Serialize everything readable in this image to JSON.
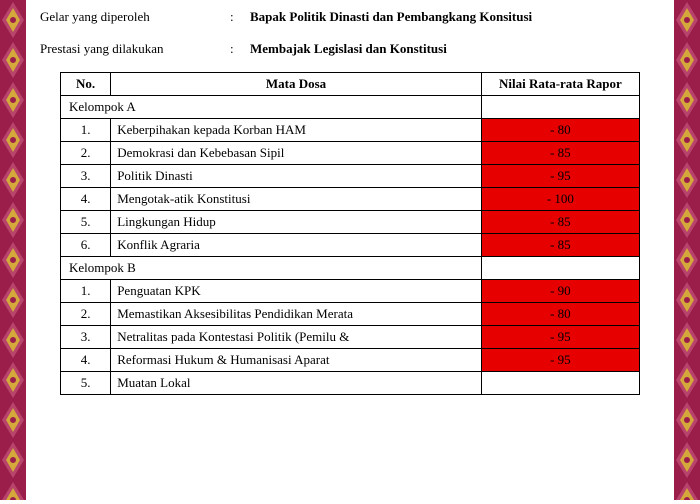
{
  "info_rows": [
    {
      "label": "Gelar yang diperoleh",
      "value": "Bapak Politik Dinasti dan Pembangkang Konsitusi"
    },
    {
      "label": "Prestasi yang dilakukan",
      "value": "Membajak Legislasi dan Konstitusi"
    }
  ],
  "headers": {
    "no": "No.",
    "subject": "Mata Dosa",
    "score": "Nilai Rata-rata Rapor"
  },
  "groups": [
    {
      "title": "Kelompok A",
      "rows": [
        {
          "no": "1.",
          "subject": "Keberpihakan kepada Korban HAM",
          "score": "- 80",
          "red": true
        },
        {
          "no": "2.",
          "subject": "Demokrasi dan Kebebasan Sipil",
          "score": "- 85",
          "red": true
        },
        {
          "no": "3.",
          "subject": "Politik Dinasti",
          "score": "- 95",
          "red": true
        },
        {
          "no": "4.",
          "subject": "Mengotak-atik Konstitusi",
          "score": "- 100",
          "red": true
        },
        {
          "no": "5.",
          "subject": "Lingkungan Hidup",
          "score": "- 85",
          "red": true
        },
        {
          "no": "6.",
          "subject": "Konflik Agraria",
          "score": "- 85",
          "red": true
        }
      ]
    },
    {
      "title": "Kelompok B",
      "rows": [
        {
          "no": "1.",
          "subject": "Penguatan KPK",
          "score": "- 90",
          "red": true
        },
        {
          "no": "2.",
          "subject": "Memastikan Aksesibilitas Pendidikan Merata",
          "score": "- 80",
          "red": true
        },
        {
          "no": "3.",
          "subject": "Netralitas pada Kontestasi Politik (Pemilu &",
          "score": "- 95",
          "red": true
        },
        {
          "no": "4.",
          "subject": "Reformasi Hukum & Humanisasi Aparat",
          "score": "- 95",
          "red": true
        },
        {
          "no": "5.",
          "subject": "Muatan Lokal",
          "score": "",
          "red": false
        }
      ]
    }
  ],
  "colors": {
    "red_bg": "#e60000",
    "ornament_a": "#9b1d4a",
    "ornament_b": "#d4a83a",
    "ornament_c": "#b8446c"
  }
}
